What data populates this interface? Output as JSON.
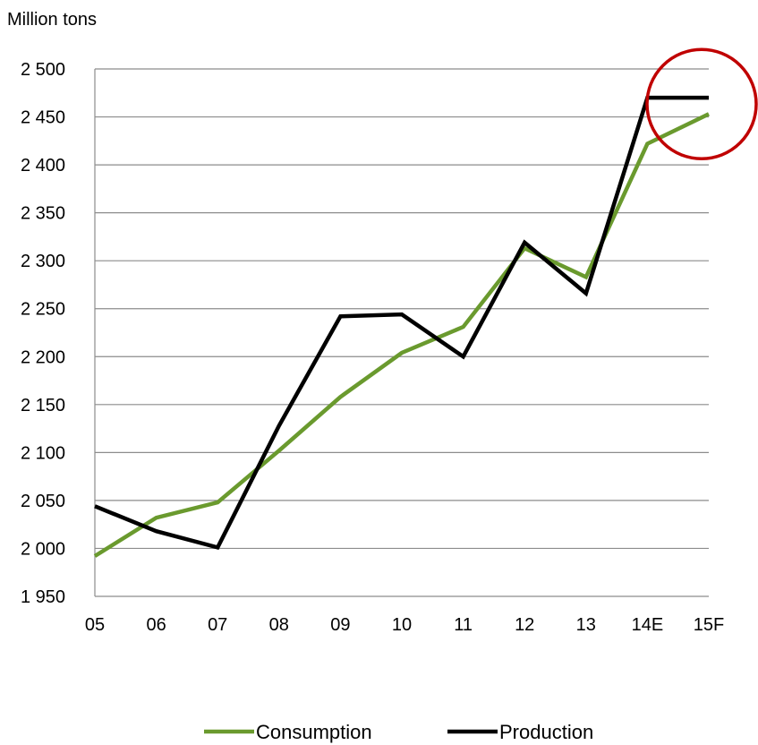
{
  "chart_data": {
    "type": "line",
    "unit_label": "Million tons",
    "categories": [
      "05",
      "06",
      "07",
      "08",
      "09",
      "10",
      "11",
      "12",
      "13",
      "14E",
      "15F"
    ],
    "series": [
      {
        "name": "Consumption",
        "color": "#6a9a2e",
        "values": [
          1992,
          2032,
          2048,
          2102,
          2158,
          2204,
          2231,
          2313,
          2283,
          2422,
          2453
        ]
      },
      {
        "name": "Production",
        "color": "#000000",
        "values": [
          2044,
          2018,
          2001,
          2128,
          2242,
          2244,
          2200,
          2319,
          2266,
          2470,
          2470
        ]
      }
    ],
    "ylim": [
      1950,
      2500
    ],
    "yticks": [
      1950,
      2000,
      2050,
      2100,
      2150,
      2200,
      2250,
      2300,
      2350,
      2400,
      2450,
      2500
    ],
    "ytick_labels": [
      "1 950",
      "2 000",
      "2 050",
      "2 100",
      "2 150",
      "2 200",
      "2 250",
      "2 300",
      "2 350",
      "2 400",
      "2 450",
      "2 500"
    ],
    "grid": true,
    "legend_position": "bottom",
    "highlight": {
      "shape": "circle",
      "color": "#c00000",
      "category": "15F"
    }
  }
}
